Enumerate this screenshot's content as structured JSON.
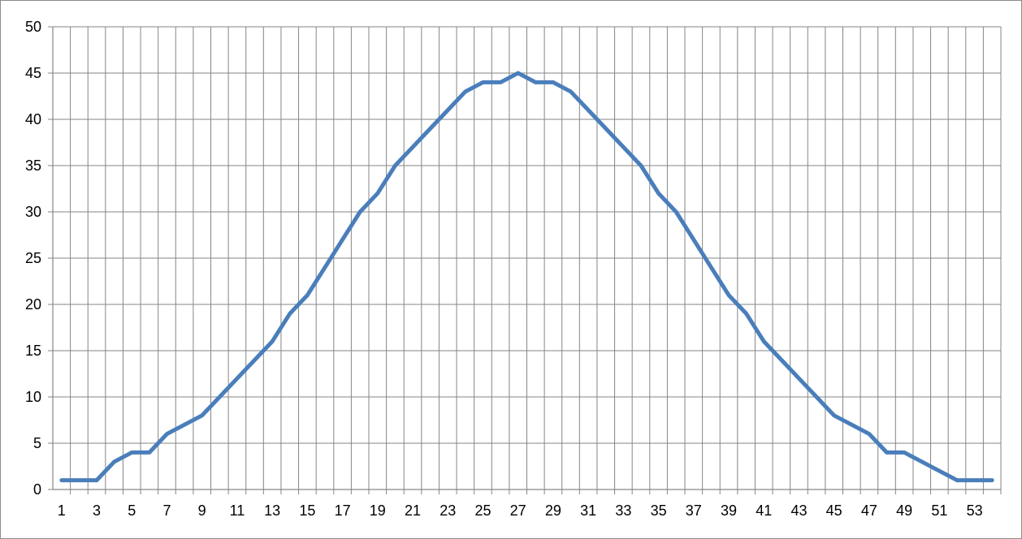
{
  "chart_data": {
    "type": "line",
    "title": "",
    "xlabel": "",
    "ylabel": "",
    "x": [
      1,
      2,
      3,
      4,
      5,
      6,
      7,
      8,
      9,
      10,
      11,
      12,
      13,
      14,
      15,
      16,
      17,
      18,
      19,
      20,
      21,
      22,
      23,
      24,
      25,
      26,
      27,
      28,
      29,
      30,
      31,
      32,
      33,
      34,
      35,
      36,
      37,
      38,
      39,
      40,
      41,
      42,
      43,
      44,
      45,
      46,
      47,
      48,
      49,
      50,
      51,
      52,
      53,
      54
    ],
    "x_tick_labels": [
      "1",
      "3",
      "5",
      "7",
      "9",
      "11",
      "13",
      "15",
      "17",
      "19",
      "21",
      "23",
      "25",
      "27",
      "29",
      "31",
      "33",
      "35",
      "37",
      "39",
      "41",
      "43",
      "45",
      "47",
      "49",
      "51",
      "53"
    ],
    "ylim": [
      0,
      50
    ],
    "y_ticks": [
      0,
      5,
      10,
      15,
      20,
      25,
      30,
      35,
      40,
      45,
      50
    ],
    "grid": true,
    "legend": "none",
    "series": [
      {
        "color": "#4a7ebb",
        "values": [
          1,
          1,
          1,
          3,
          4,
          4,
          6,
          7,
          8,
          10,
          12,
          14,
          16,
          19,
          21,
          24,
          27,
          30,
          32,
          35,
          37,
          39,
          41,
          43,
          44,
          44,
          45,
          44,
          44,
          43,
          41,
          39,
          37,
          35,
          32,
          30,
          27,
          24,
          21,
          19,
          16,
          14,
          12,
          10,
          8,
          7,
          6,
          4,
          4,
          3,
          2,
          1,
          1,
          1
        ]
      }
    ]
  }
}
